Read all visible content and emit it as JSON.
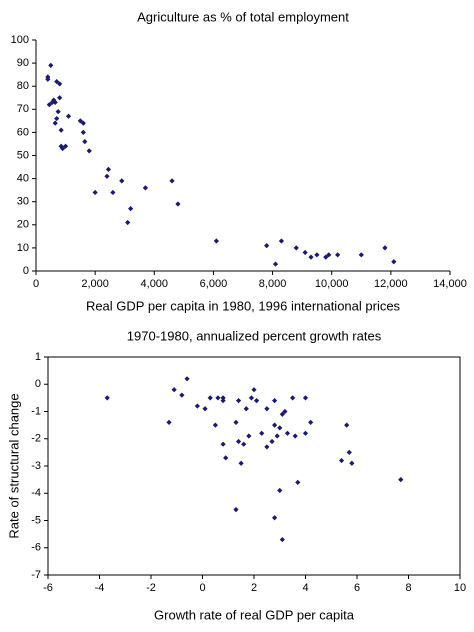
{
  "chart_data": [
    {
      "type": "scatter",
      "title": "Agriculture as % of total employment",
      "x_label": "Real GDP per capita in 1980, 1996 international prices",
      "color": "#1a1a6e",
      "x": [
        400,
        400,
        450,
        500,
        550,
        600,
        650,
        700,
        650,
        700,
        750,
        800,
        800,
        850,
        850,
        900,
        1000,
        1100,
        1500,
        1600,
        1600,
        1650,
        1800,
        2000,
        2400,
        2450,
        2600,
        2900,
        3100,
        3200,
        3700,
        4600,
        4800,
        6100,
        7800,
        8100,
        8300,
        8800,
        9100,
        9300,
        9500,
        9800,
        9900,
        10200,
        11000,
        11800,
        12100
      ],
      "y": [
        84,
        83,
        72,
        89,
        73,
        74,
        73,
        82,
        64,
        66,
        69,
        81,
        75,
        61,
        54,
        53,
        54,
        67,
        65,
        64,
        60,
        56,
        52,
        34,
        41,
        44,
        34,
        39,
        21,
        27,
        36,
        39,
        29,
        13,
        11,
        3,
        13,
        10,
        8,
        6,
        7,
        6,
        7,
        7,
        7,
        10,
        4
      ],
      "xlim": [
        0,
        14000
      ],
      "ylim": [
        0,
        100
      ],
      "xticks": [
        0,
        {
          "value": 2000,
          "label": "2,000"
        },
        {
          "value": 4000,
          "label": "4,000"
        },
        {
          "value": 6000,
          "label": "6,000"
        },
        {
          "value": 8000,
          "label": "8,000"
        },
        {
          "value": 10000,
          "label": "10,000"
        },
        {
          "value": 12000,
          "label": "12,000"
        },
        {
          "value": 14000,
          "label": "14,000"
        }
      ],
      "yticks": [
        0,
        10,
        20,
        30,
        40,
        50,
        60,
        70,
        80,
        90,
        100
      ]
    },
    {
      "type": "scatter",
      "title": "1970-1980, annualized percent growth rates",
      "x_label": "Growth rate of real GDP per capita",
      "y_label": "Rate of structural change",
      "color": "#1a1a6e",
      "x": [
        -3.7,
        -1.3,
        -1.1,
        -0.8,
        -0.6,
        -0.2,
        0.1,
        0.3,
        0.5,
        0.6,
        0.8,
        0.8,
        0.8,
        0.9,
        1.3,
        1.3,
        1.4,
        1.4,
        1.5,
        1.6,
        1.7,
        1.8,
        1.9,
        2.0,
        2.1,
        2.3,
        2.5,
        2.5,
        2.7,
        2.8,
        2.8,
        2.8,
        2.9,
        3.0,
        3.0,
        3.1,
        3.1,
        3.2,
        3.3,
        3.5,
        3.6,
        3.7,
        4.0,
        4.0,
        4.2,
        5.4,
        5.6,
        5.7,
        5.8,
        7.7
      ],
      "y": [
        -0.5,
        -1.4,
        -0.2,
        -0.4,
        0.2,
        -0.8,
        -0.9,
        -0.5,
        -1.5,
        -0.5,
        -0.5,
        -0.6,
        -2.2,
        -2.7,
        -1.4,
        -4.6,
        -0.6,
        -2.1,
        -2.9,
        -2.2,
        -0.9,
        -1.9,
        -0.5,
        -0.2,
        -0.6,
        -1.8,
        -2.3,
        -0.9,
        -2.1,
        -0.6,
        -1.5,
        -4.9,
        -1.9,
        -3.9,
        -1.6,
        -1.1,
        -5.7,
        -1.0,
        -1.8,
        -0.5,
        -1.9,
        -3.6,
        -0.5,
        -1.8,
        -1.4,
        -2.8,
        -1.5,
        -2.5,
        -2.9,
        -3.5
      ],
      "xlim": [
        -6,
        10
      ],
      "ylim": [
        -7,
        1
      ],
      "xticks": [
        -6,
        -4,
        -2,
        0,
        2,
        4,
        6,
        8,
        10
      ],
      "yticks": [
        -7,
        -6,
        -5,
        -4,
        -3,
        -2,
        -1,
        0,
        1
      ]
    }
  ]
}
